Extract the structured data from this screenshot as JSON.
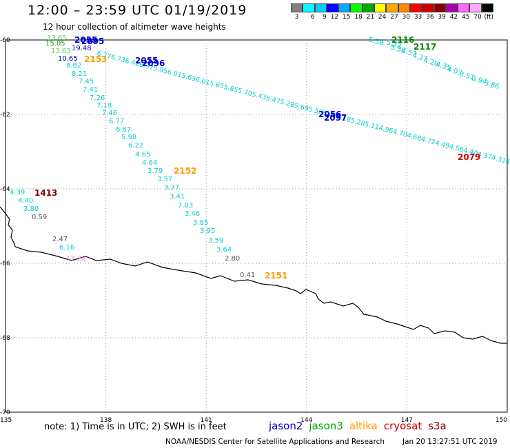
{
  "header": {
    "title": "12:00 – 23:59 UTC 01/19/2019",
    "subtitle": "12 hour collection of altimeter wave heights"
  },
  "scale": {
    "colors": [
      "#808080",
      "#00ffff",
      "#00ccff",
      "#0000ff",
      "#00aaff",
      "#00ff00",
      "#00aa00",
      "#ffff00",
      "#ffaa00",
      "#ff8800",
      "#ff0000",
      "#cc0000",
      "#880000",
      "#aa00aa",
      "#ff66ff",
      "#ffaaff",
      "#000000"
    ],
    "labels": [
      "3",
      "6",
      "9",
      "12",
      "15",
      "18",
      "21",
      "24",
      "27",
      "30",
      "33",
      "36",
      "39",
      "42",
      "45",
      "70",
      "(ft)"
    ]
  },
  "map": {
    "lon_range": [
      135,
      150
    ],
    "lat_range": [
      -70,
      -60
    ],
    "lon_ticks": [
      "135",
      "138",
      "141",
      "144",
      "147",
      "150"
    ],
    "lat_ticks": [
      "-60",
      "-62",
      "-64",
      "-66",
      "-68",
      "-70"
    ]
  },
  "tracks": {
    "main_diagonal": {
      "color": "#00cccc",
      "values": [
        "10.65",
        "8.82",
        "8.21",
        "7.45",
        "7.41",
        "7.26",
        "7.18",
        "7.46",
        "6.77",
        "6.67",
        "5.98",
        "6.22",
        "4.65",
        "4.64",
        "3.79",
        "3.57",
        "3.77",
        "3.41",
        "7.03",
        "3.46",
        "3.85",
        "3.95",
        "3.59",
        "3.64"
      ]
    },
    "left_group": {
      "values": [
        "4.39",
        "4.40",
        "3.80",
        "0.59",
        "2.47",
        "6.16",
        "17.28"
      ],
      "colors": [
        "#00cccc",
        "#00cccc",
        "#00cccc",
        "#555555",
        "#555555",
        "#00cccc",
        "#ff88ff"
      ]
    },
    "top_left_values": [
      "13.65",
      "15.05",
      "13.63",
      "19.48"
    ],
    "top_right_values": [
      "5.58",
      "5.32",
      "5.38",
      "4.57",
      "4.27",
      "4.28",
      "4.35",
      "4.03",
      "3.51",
      "3.94",
      "3.86"
    ],
    "end_labels": [
      "2.80",
      "0.41"
    ]
  },
  "pass_labels": [
    {
      "text": "2055",
      "color": "#0000cc"
    },
    {
      "text": "2095",
      "color": "#0000cc"
    },
    {
      "text": "2153",
      "color": "#ff9900"
    },
    {
      "text": "2055",
      "color": "#0000cc"
    },
    {
      "text": "2096",
      "color": "#0000cc"
    },
    {
      "text": "2056",
      "color": "#0000cc"
    },
    {
      "text": "2097",
      "color": "#0000cc"
    },
    {
      "text": "2116",
      "color": "#008800"
    },
    {
      "text": "2117",
      "color": "#008800"
    },
    {
      "text": "2152",
      "color": "#ff9900"
    },
    {
      "text": "1413",
      "color": "#880000"
    },
    {
      "text": "2151",
      "color": "#ff9900"
    },
    {
      "text": "2079",
      "color": "#cc0000"
    }
  ],
  "footer": {
    "note": "note:  1) Time is in UTC;  2) SWH is in feet",
    "legend": [
      {
        "name": "jason2",
        "color": "#0000cc"
      },
      {
        "name": "jason3",
        "color": "#00aa00"
      },
      {
        "name": "altika",
        "color": "#ff9900"
      },
      {
        "name": "cryosat",
        "color": "#cc0000"
      },
      {
        "name": "s3a",
        "color": "#880000"
      }
    ],
    "credit": "NOAA/NESDIS Center for Satellite Applications and Research",
    "timestamp": "Jan 20 13:27:51 UTC 2019"
  }
}
